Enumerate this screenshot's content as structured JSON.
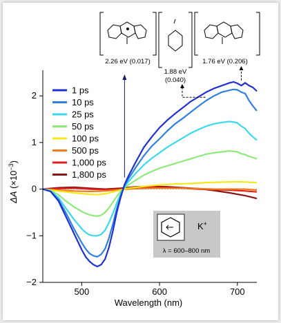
{
  "chart_data": {
    "type": "line",
    "xlabel": "Wavelength (nm)",
    "ylabel_main": "ΔA",
    "ylabel_unit": "(×10",
    "ylabel_exp": "−3",
    "ylabel_close": ")",
    "xlim": [
      450,
      725
    ],
    "ylim": [
      -2,
      2.55
    ],
    "xticks": [
      {
        "value": 500,
        "label": "500"
      },
      {
        "value": 600,
        "label": "600"
      },
      {
        "value": 700,
        "label": "700"
      }
    ],
    "yticks": [
      {
        "value": -2,
        "label": "−2"
      },
      {
        "value": -1,
        "label": "−1"
      },
      {
        "value": 0,
        "label": "0"
      },
      {
        "value": 1,
        "label": "1"
      },
      {
        "value": 2,
        "label": "2"
      }
    ],
    "grid": false,
    "legend_position": "top-left",
    "series": [
      {
        "name": "1 ps",
        "color": "#1f2fd0",
        "x": [
          450,
          460,
          470,
          480,
          490,
          500,
          505,
          510,
          515,
          520,
          525,
          530,
          535,
          540,
          545,
          550,
          555,
          560,
          570,
          580,
          590,
          600,
          610,
          620,
          630,
          640,
          650,
          660,
          670,
          680,
          690,
          695,
          700,
          705,
          710,
          715,
          720,
          725
        ],
        "y": [
          0,
          -0.05,
          -0.25,
          -0.6,
          -0.95,
          -1.3,
          -1.45,
          -1.55,
          -1.62,
          -1.66,
          -1.62,
          -1.5,
          -1.25,
          -0.9,
          -0.5,
          -0.18,
          0.1,
          0.28,
          0.6,
          0.9,
          1.12,
          1.32,
          1.48,
          1.62,
          1.75,
          1.88,
          1.98,
          2.08,
          2.16,
          2.22,
          2.28,
          2.3,
          2.27,
          2.22,
          2.28,
          2.22,
          2.18,
          2.1
        ]
      },
      {
        "name": "10 ps",
        "color": "#2e7fe0",
        "x": [
          450,
          460,
          470,
          480,
          490,
          500,
          505,
          510,
          515,
          520,
          525,
          530,
          535,
          540,
          545,
          550,
          555,
          560,
          570,
          580,
          590,
          600,
          610,
          620,
          630,
          640,
          650,
          660,
          670,
          680,
          690,
          695,
          700,
          705,
          710,
          715,
          720,
          725
        ],
        "y": [
          0,
          -0.05,
          -0.22,
          -0.52,
          -0.85,
          -1.15,
          -1.28,
          -1.38,
          -1.43,
          -1.45,
          -1.4,
          -1.28,
          -1.05,
          -0.75,
          -0.42,
          -0.15,
          0.08,
          0.22,
          0.48,
          0.72,
          0.92,
          1.08,
          1.25,
          1.4,
          1.52,
          1.65,
          1.78,
          1.9,
          2.0,
          2.08,
          2.12,
          2.14,
          2.13,
          2.08,
          2.05,
          1.9,
          1.78,
          1.68
        ]
      },
      {
        "name": "25 ps",
        "color": "#3bd8ec",
        "x": [
          450,
          460,
          470,
          480,
          490,
          500,
          505,
          510,
          515,
          520,
          525,
          530,
          535,
          540,
          545,
          550,
          555,
          560,
          570,
          580,
          590,
          600,
          610,
          620,
          630,
          640,
          650,
          660,
          670,
          680,
          690,
          695,
          700,
          705,
          710,
          715,
          720,
          725
        ],
        "y": [
          0,
          -0.04,
          -0.18,
          -0.42,
          -0.65,
          -0.85,
          -0.93,
          -0.98,
          -1.0,
          -1.0,
          -0.97,
          -0.88,
          -0.72,
          -0.52,
          -0.3,
          -0.1,
          0.05,
          0.16,
          0.35,
          0.52,
          0.66,
          0.78,
          0.9,
          1.0,
          1.1,
          1.2,
          1.28,
          1.35,
          1.4,
          1.43,
          1.45,
          1.44,
          1.42,
          1.35,
          1.3,
          1.2,
          1.12,
          1.05
        ]
      },
      {
        "name": "50 ps",
        "color": "#8ee87a",
        "x": [
          450,
          460,
          470,
          480,
          490,
          500,
          505,
          510,
          515,
          520,
          525,
          530,
          535,
          540,
          545,
          550,
          555,
          560,
          570,
          580,
          590,
          600,
          610,
          620,
          630,
          640,
          650,
          660,
          670,
          680,
          690,
          695,
          700,
          705,
          710,
          715,
          720,
          725
        ],
        "y": [
          0,
          -0.03,
          -0.12,
          -0.26,
          -0.38,
          -0.48,
          -0.52,
          -0.55,
          -0.57,
          -0.58,
          -0.56,
          -0.5,
          -0.4,
          -0.28,
          -0.16,
          -0.05,
          0.03,
          0.09,
          0.2,
          0.3,
          0.38,
          0.45,
          0.5,
          0.55,
          0.6,
          0.65,
          0.7,
          0.75,
          0.78,
          0.8,
          0.82,
          0.81,
          0.8,
          0.76,
          0.74,
          0.7,
          0.68,
          0.65
        ]
      },
      {
        "name": "100 ps",
        "color": "#f4e81c",
        "x": [
          450,
          470,
          490,
          510,
          520,
          530,
          545,
          560,
          580,
          600,
          620,
          640,
          660,
          680,
          700,
          725
        ],
        "y": [
          0,
          -0.04,
          -0.08,
          -0.11,
          -0.12,
          -0.1,
          -0.04,
          0.02,
          0.06,
          0.09,
          0.11,
          0.12,
          0.14,
          0.15,
          0.16,
          0.14
        ]
      },
      {
        "name": "500 ps",
        "color": "#f07a1e",
        "x": [
          450,
          470,
          490,
          510,
          530,
          550,
          570,
          590,
          610,
          630,
          650,
          670,
          690,
          710,
          725
        ],
        "y": [
          0,
          -0.02,
          -0.04,
          -0.05,
          -0.04,
          -0.01,
          0.01,
          0.02,
          0.02,
          0.02,
          0.01,
          0.0,
          0.0,
          0.0,
          -0.02
        ]
      },
      {
        "name": "1,000 ps",
        "color": "#e0201c",
        "x": [
          450,
          470,
          490,
          510,
          530,
          550,
          570,
          590,
          610,
          630,
          650,
          670,
          690,
          710,
          725
        ],
        "y": [
          0,
          0.01,
          0.02,
          0.0,
          -0.01,
          0.0,
          0.03,
          0.04,
          0.03,
          0.02,
          0.0,
          -0.01,
          -0.02,
          -0.04,
          -0.06
        ]
      },
      {
        "name": "1,800 ps",
        "color": "#8a1414",
        "x": [
          450,
          470,
          490,
          510,
          530,
          550,
          570,
          590,
          610,
          630,
          650,
          670,
          690,
          710,
          725
        ],
        "y": [
          0,
          0.03,
          0.04,
          0.02,
          0.0,
          0.02,
          0.05,
          0.06,
          0.05,
          0.03,
          0.01,
          -0.03,
          -0.08,
          -0.14,
          -0.2
        ]
      }
    ],
    "annotations": [
      {
        "id": "a1",
        "energy": "2.26 eV (0.017)",
        "x_nm": 555
      },
      {
        "id": "a2",
        "energy_line1": "1.88 eV",
        "energy_line2": "(0.040)",
        "x_nm": 659
      },
      {
        "id": "a3",
        "energy": "1.76 eV (0.206)",
        "x_nm": 705
      }
    ],
    "inset": {
      "ion": "K",
      "ion_charge": "+",
      "lambda_label": "λ = 600–800 nm"
    }
  }
}
